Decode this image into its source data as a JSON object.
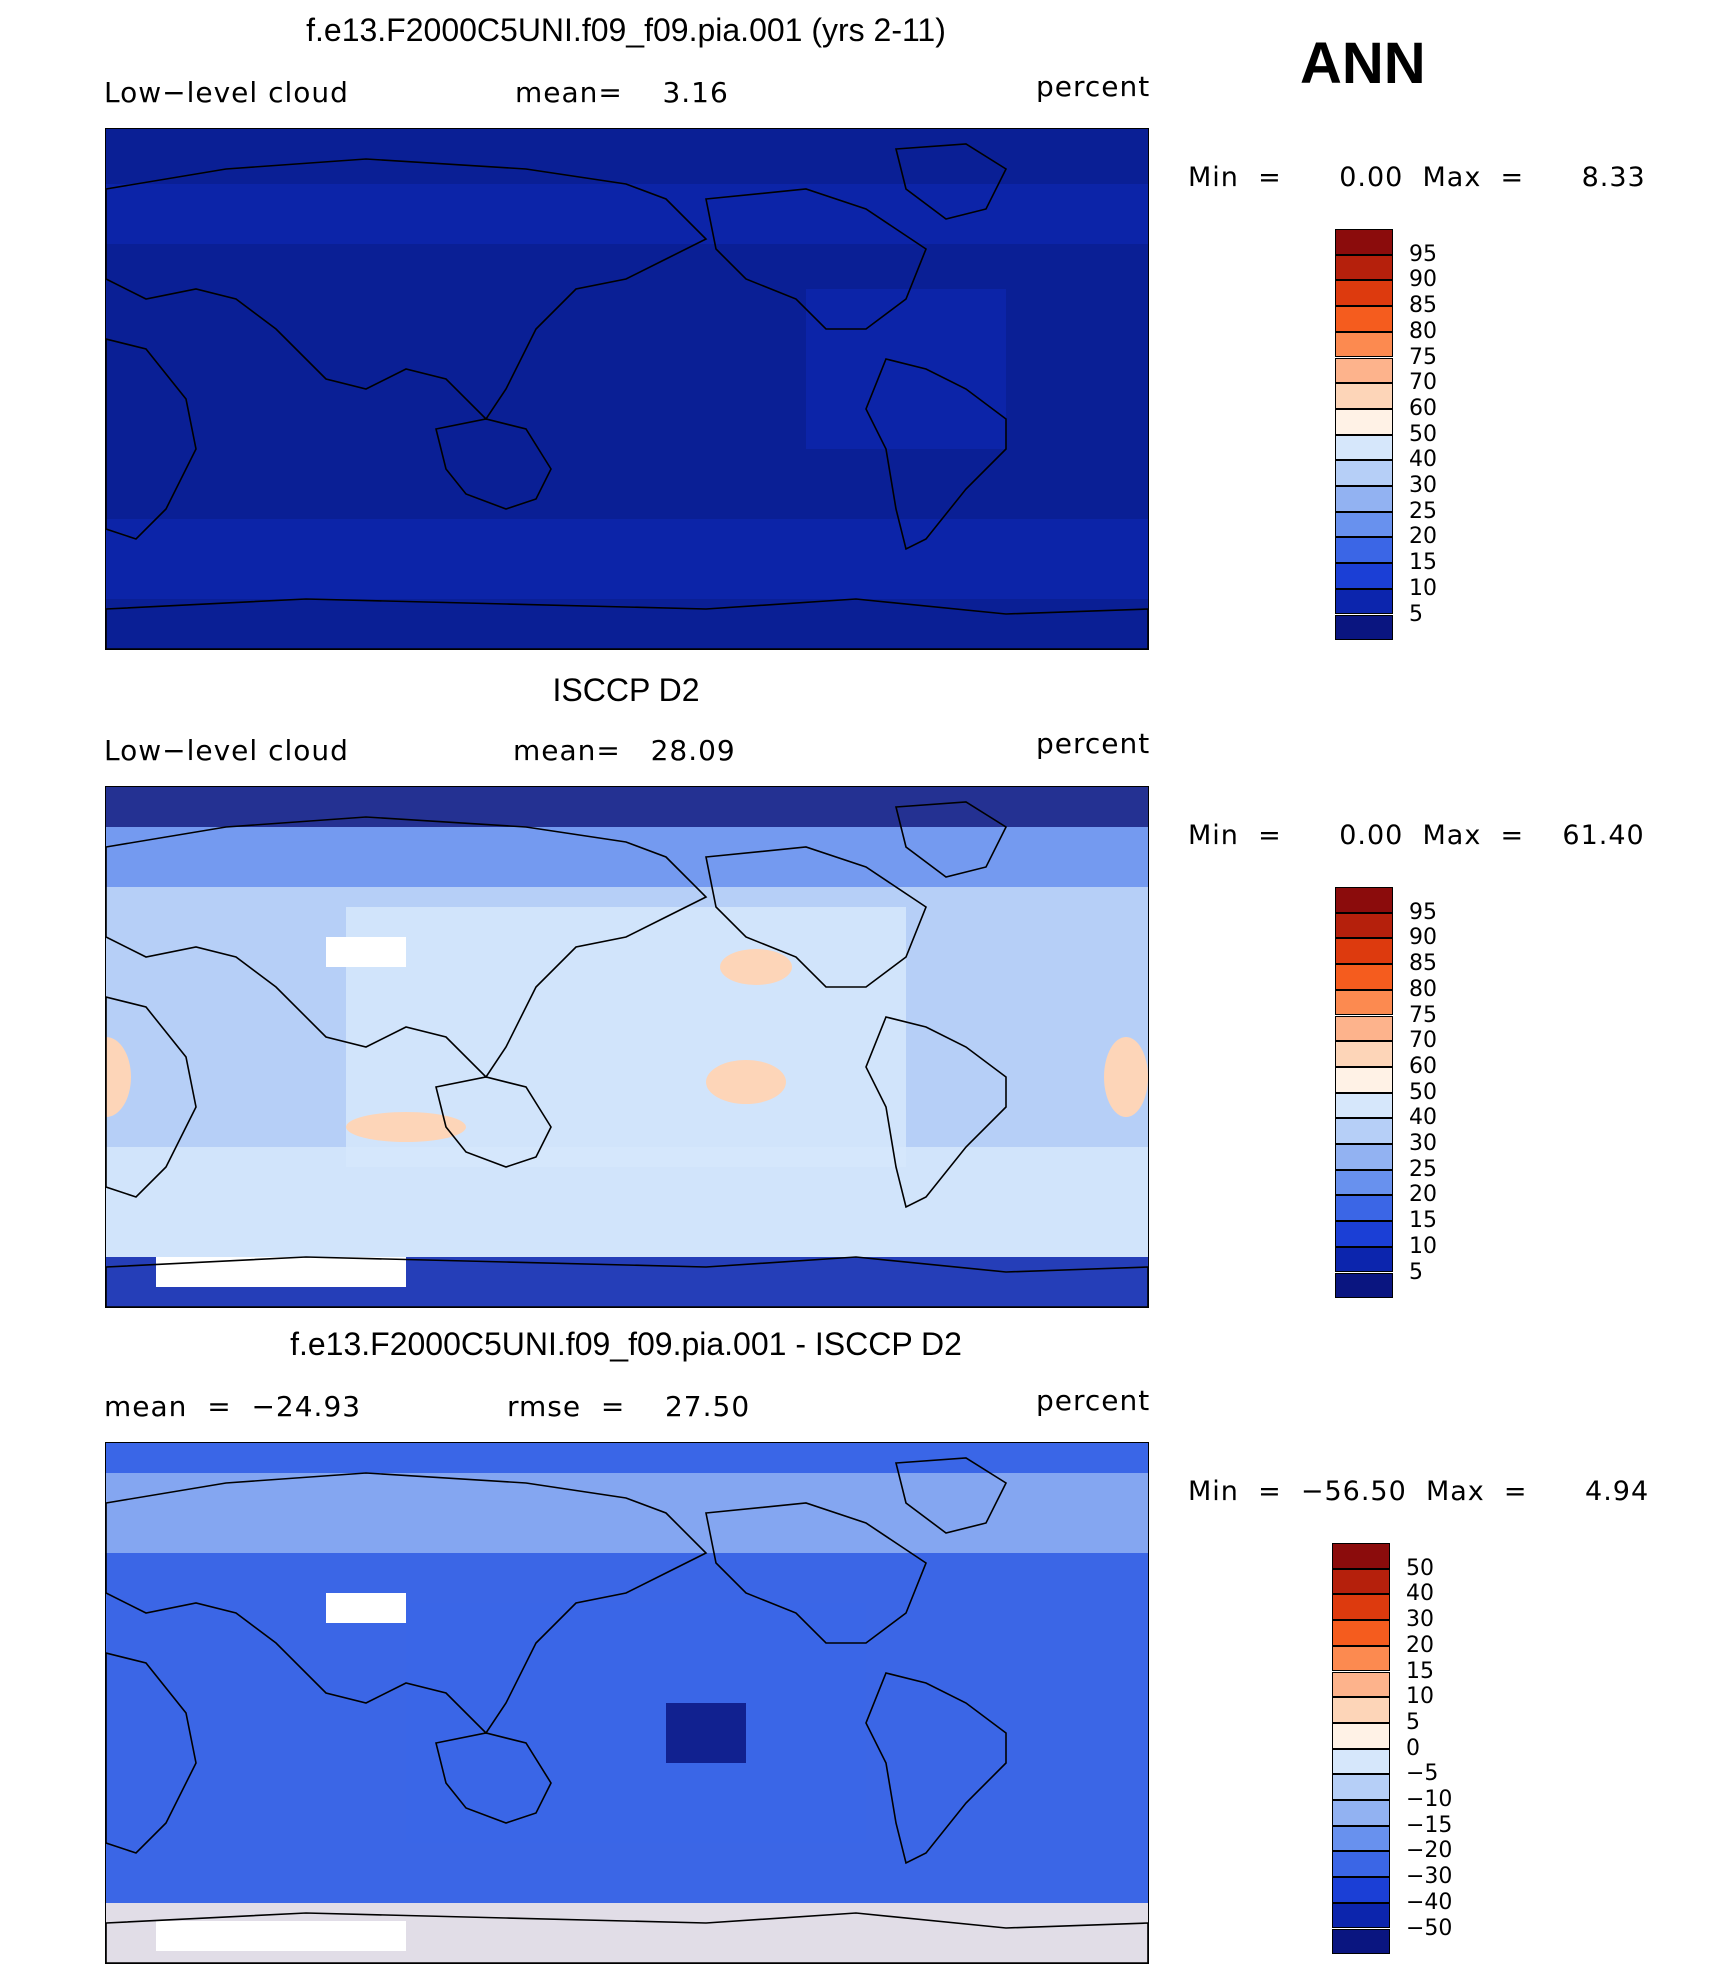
{
  "season": "ANN",
  "panels": [
    {
      "title": "f.e13.F2000C5UNI.f09_f09.pia.001 (yrs 2-11)",
      "left_label": "Low−level  cloud",
      "center_label": "mean=    3.16",
      "units": "percent",
      "minmax": "Min  =      0.00  Max  =      8.33",
      "scale": "abs",
      "dominant": "#0a1f95",
      "legend_labels": [
        "95",
        "90",
        "85",
        "80",
        "75",
        "70",
        "60",
        "50",
        "40",
        "30",
        "25",
        "20",
        "15",
        "10",
        "5"
      ],
      "legend_colors": [
        "#8b0c0c",
        "#b5200c",
        "#dd3a0e",
        "#f55c1e",
        "#fc8a50",
        "#fdb38c",
        "#fdd5b8",
        "#fff2e6",
        "#d6e7fb",
        "#b6cff7",
        "#92b2f2",
        "#6891ee",
        "#3b66e6",
        "#1b3fd6",
        "#0c25ad",
        "#0a1580"
      ],
      "chart_data": {
        "type": "heatmap",
        "title": "f.e13.F2000C5UNI.f09_f09.pia.001 (yrs 2-11)",
        "variable": "Low-level cloud",
        "units": "percent",
        "mean": 3.16,
        "min": 0.0,
        "max": 8.33,
        "contour_levels": [
          5,
          10,
          15,
          20,
          25,
          30,
          40,
          50,
          60,
          70,
          75,
          80,
          85,
          90,
          95
        ]
      }
    },
    {
      "title": "ISCCP D2",
      "left_label": "Low−level  cloud",
      "center_label": "mean=   28.09",
      "units": "percent",
      "minmax": "Min  =      0.00  Max  =    61.40",
      "scale": "abs",
      "dominant": "#b6cff7",
      "legend_labels": [
        "95",
        "90",
        "85",
        "80",
        "75",
        "70",
        "60",
        "50",
        "40",
        "30",
        "25",
        "20",
        "15",
        "10",
        "5"
      ],
      "legend_colors": [
        "#8b0c0c",
        "#b5200c",
        "#dd3a0e",
        "#f55c1e",
        "#fc8a50",
        "#fdb38c",
        "#fdd5b8",
        "#fff2e6",
        "#d6e7fb",
        "#b6cff7",
        "#92b2f2",
        "#6891ee",
        "#3b66e6",
        "#1b3fd6",
        "#0c25ad",
        "#0a1580"
      ],
      "chart_data": {
        "type": "heatmap",
        "title": "ISCCP D2",
        "variable": "Low-level cloud",
        "units": "percent",
        "mean": 28.09,
        "min": 0.0,
        "max": 61.4,
        "contour_levels": [
          5,
          10,
          15,
          20,
          25,
          30,
          40,
          50,
          60,
          70,
          75,
          80,
          85,
          90,
          95
        ]
      }
    },
    {
      "title": "f.e13.F2000C5UNI.f09_f09.pia.001 - ISCCP D2",
      "left_label": "mean  =  −24.93",
      "center_label": "rmse  =    27.50",
      "units": "percent",
      "minmax": "Min  =  −56.50  Max  =      4.94",
      "scale": "diff",
      "dominant": "#3b66e6",
      "legend_labels": [
        "50",
        "40",
        "30",
        "20",
        "15",
        "10",
        "5",
        "0",
        "−5",
        "−10",
        "−15",
        "−20",
        "−30",
        "−40",
        "−50"
      ],
      "legend_colors": [
        "#8b0c0c",
        "#b5200c",
        "#dd3a0e",
        "#f55c1e",
        "#fc8a50",
        "#fdb38c",
        "#fdd5b8",
        "#fff2e6",
        "#d6e7fb",
        "#b6cff7",
        "#92b2f2",
        "#6891ee",
        "#3b66e6",
        "#1b3fd6",
        "#0c25ad",
        "#0a1580"
      ],
      "chart_data": {
        "type": "heatmap",
        "title": "f.e13.F2000C5UNI.f09_f09.pia.001 - ISCCP D2",
        "units": "percent",
        "mean": -24.93,
        "rmse": 27.5,
        "min": -56.5,
        "max": 4.94,
        "contour_levels": [
          -50,
          -40,
          -30,
          -20,
          -15,
          -10,
          -5,
          0,
          5,
          10,
          15,
          20,
          30,
          40,
          50
        ]
      }
    }
  ]
}
